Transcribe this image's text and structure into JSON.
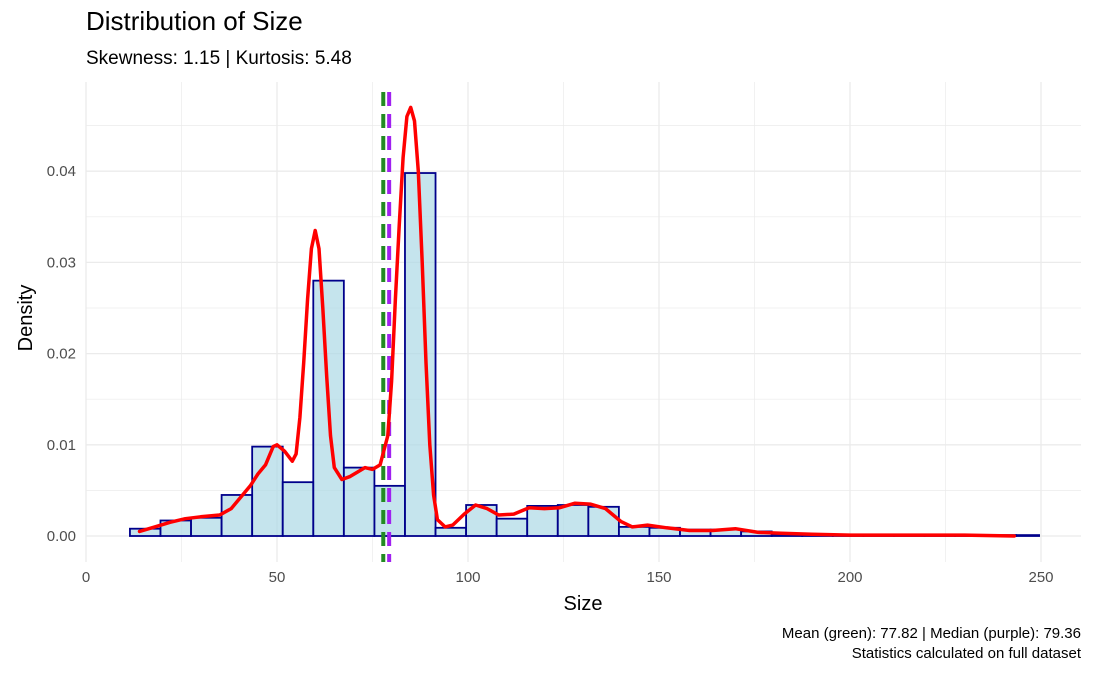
{
  "chart_data": {
    "type": "histogram",
    "title": "Distribution of Size",
    "subtitle": "Skewness: 1.15 | Kurtosis: 5.48",
    "xlabel": "Size",
    "ylabel": "Density",
    "caption_line1": "Mean (green): 77.82 | Median (purple): 79.36",
    "caption_line2": "Statistics calculated on full dataset",
    "xlim": [
      0,
      260
    ],
    "ylim": [
      0,
      0.048
    ],
    "x_ticks": [
      0,
      50,
      100,
      150,
      200,
      250
    ],
    "y_ticks": [
      0.0,
      0.01,
      0.02,
      0.03,
      0.04
    ],
    "x_tick_labels": [
      "0",
      "50",
      "100",
      "150",
      "200",
      "250"
    ],
    "y_tick_labels": [
      "0.00",
      "0.01",
      "0.02",
      "0.03",
      "0.04"
    ],
    "grid": true,
    "bins": [
      {
        "x0": 11.5,
        "x1": 19.5,
        "density": 0.0008
      },
      {
        "x0": 19.5,
        "x1": 27.5,
        "density": 0.0017
      },
      {
        "x0": 27.5,
        "x1": 35.5,
        "density": 0.002
      },
      {
        "x0": 35.5,
        "x1": 43.5,
        "density": 0.0045
      },
      {
        "x0": 43.5,
        "x1": 51.5,
        "density": 0.0098
      },
      {
        "x0": 51.5,
        "x1": 59.5,
        "density": 0.0059
      },
      {
        "x0": 59.5,
        "x1": 67.5,
        "density": 0.028
      },
      {
        "x0": 67.5,
        "x1": 75.5,
        "density": 0.0075
      },
      {
        "x0": 75.5,
        "x1": 83.5,
        "density": 0.0055
      },
      {
        "x0": 83.5,
        "x1": 91.5,
        "density": 0.0398
      },
      {
        "x0": 91.5,
        "x1": 99.5,
        "density": 0.0009
      },
      {
        "x0": 99.5,
        "x1": 107.5,
        "density": 0.0034
      },
      {
        "x0": 107.5,
        "x1": 115.5,
        "density": 0.0019
      },
      {
        "x0": 115.5,
        "x1": 123.5,
        "density": 0.0033
      },
      {
        "x0": 123.5,
        "x1": 131.5,
        "density": 0.0034
      },
      {
        "x0": 131.5,
        "x1": 139.5,
        "density": 0.0032
      },
      {
        "x0": 139.5,
        "x1": 147.5,
        "density": 0.001
      },
      {
        "x0": 147.5,
        "x1": 155.5,
        "density": 0.0009
      },
      {
        "x0": 155.5,
        "x1": 163.5,
        "density": 0.0007
      },
      {
        "x0": 163.5,
        "x1": 171.5,
        "density": 0.0007
      },
      {
        "x0": 171.5,
        "x1": 179.5,
        "density": 0.0005
      },
      {
        "x0": 179.5,
        "x1": 187.5,
        "density": 0.0002
      },
      {
        "x0": 187.5,
        "x1": 195.5,
        "density": 0.0001
      },
      {
        "x0": 195.5,
        "x1": 203.5,
        "density": 0.0001
      },
      {
        "x0": 203.5,
        "x1": 211.5,
        "density": 0.0001
      },
      {
        "x0": 211.5,
        "x1": 219.5,
        "density": 0.0001
      },
      {
        "x0": 219.5,
        "x1": 227.5,
        "density": 0.0001
      },
      {
        "x0": 227.5,
        "x1": 235.5,
        "density": 0.0001
      },
      {
        "x0": 235.5,
        "x1": 243.5,
        "density": 0.0001
      },
      {
        "x0": 243.5,
        "x1": 249.5,
        "density": 0.0001
      }
    ],
    "density_curve": [
      [
        14,
        0.0005
      ],
      [
        18,
        0.001
      ],
      [
        22,
        0.0015
      ],
      [
        26,
        0.0019
      ],
      [
        30,
        0.0021
      ],
      [
        35,
        0.0023
      ],
      [
        38,
        0.003
      ],
      [
        40,
        0.004
      ],
      [
        43,
        0.0055
      ],
      [
        45,
        0.0068
      ],
      [
        47,
        0.0078
      ],
      [
        49,
        0.0098
      ],
      [
        50,
        0.01
      ],
      [
        52,
        0.0093
      ],
      [
        54,
        0.0082
      ],
      [
        55,
        0.009
      ],
      [
        56,
        0.013
      ],
      [
        57,
        0.019
      ],
      [
        58,
        0.026
      ],
      [
        59,
        0.0315
      ],
      [
        60,
        0.0335
      ],
      [
        61,
        0.0315
      ],
      [
        62,
        0.025
      ],
      [
        63,
        0.0175
      ],
      [
        64,
        0.011
      ],
      [
        65,
        0.0075
      ],
      [
        67,
        0.0062
      ],
      [
        69,
        0.0065
      ],
      [
        71,
        0.007
      ],
      [
        73,
        0.0075
      ],
      [
        75,
        0.0073
      ],
      [
        77,
        0.0078
      ],
      [
        79,
        0.011
      ],
      [
        80,
        0.017
      ],
      [
        81,
        0.026
      ],
      [
        82,
        0.034
      ],
      [
        83,
        0.0415
      ],
      [
        84,
        0.046
      ],
      [
        85,
        0.047
      ],
      [
        86,
        0.0455
      ],
      [
        87,
        0.04
      ],
      [
        88,
        0.03
      ],
      [
        89,
        0.019
      ],
      [
        90,
        0.01
      ],
      [
        91,
        0.0045
      ],
      [
        92,
        0.0018
      ],
      [
        94,
        0.001
      ],
      [
        96,
        0.0012
      ],
      [
        99,
        0.0024
      ],
      [
        102,
        0.0034
      ],
      [
        105,
        0.003
      ],
      [
        108,
        0.0023
      ],
      [
        112,
        0.0024
      ],
      [
        116,
        0.0031
      ],
      [
        120,
        0.003
      ],
      [
        124,
        0.0031
      ],
      [
        128,
        0.0036
      ],
      [
        132,
        0.0035
      ],
      [
        136,
        0.003
      ],
      [
        140,
        0.0016
      ],
      [
        143,
        0.001
      ],
      [
        147,
        0.0012
      ],
      [
        152,
        0.0009
      ],
      [
        158,
        0.0006
      ],
      [
        164,
        0.0006
      ],
      [
        170,
        0.0008
      ],
      [
        176,
        0.0004
      ],
      [
        182,
        0.0003
      ],
      [
        190,
        0.0002
      ],
      [
        200,
        0.0001
      ],
      [
        210,
        0.0001
      ],
      [
        220,
        0.0001
      ],
      [
        230,
        0.0001
      ],
      [
        243,
        0.0
      ]
    ],
    "mean": 77.82,
    "median": 79.36,
    "colors": {
      "bar_fill": "#add8e6",
      "bar_stroke": "#00008b",
      "curve": "#ff0000",
      "mean_line": "#228b22",
      "median_line": "#a020f0",
      "grid": "#ebebeb"
    }
  }
}
